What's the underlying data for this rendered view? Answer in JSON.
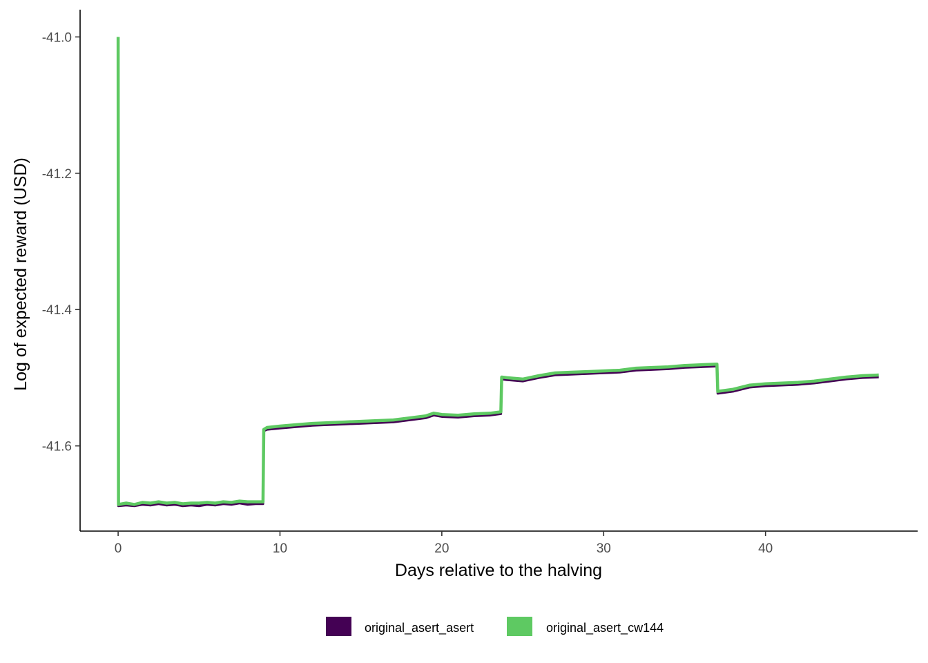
{
  "chart_data": {
    "type": "line",
    "title": "",
    "xlabel": "Days relative to the halving",
    "ylabel": "Log of expected reward (USD)",
    "xlim": [
      -2.35,
      49.4
    ],
    "ylim": [
      -41.725,
      -40.96
    ],
    "x_ticks": [
      0,
      10,
      20,
      30,
      40
    ],
    "x_tick_labels": [
      "0",
      "10",
      "20",
      "30",
      "40"
    ],
    "y_ticks": [
      -41.6,
      -41.4,
      -41.2,
      -41.0
    ],
    "y_tick_labels": [
      "-41.6",
      "-41.4",
      "-41.2",
      "-41.0"
    ],
    "grid": false,
    "legend_position": "bottom",
    "series": [
      {
        "name": "original_asert_asert",
        "color": "#440154",
        "x": [
          0,
          0.02,
          0.5,
          1,
          1.5,
          2,
          2.5,
          3,
          3.5,
          4,
          4.5,
          5,
          5.5,
          6,
          6.5,
          7,
          7.5,
          8,
          8.5,
          8.95,
          9.0,
          9.2,
          10,
          11,
          12,
          13,
          14,
          15,
          16,
          17,
          18,
          19,
          19.5,
          20,
          21,
          22,
          23,
          23.65,
          23.7,
          24,
          25,
          26,
          27,
          28,
          29,
          30,
          31,
          32,
          33,
          34,
          35,
          36,
          37.0,
          37.05,
          38,
          39,
          40,
          41,
          42,
          43,
          44,
          45,
          46,
          47
        ],
        "y": [
          -41.0,
          -41.688,
          -41.687,
          -41.688,
          -41.686,
          -41.687,
          -41.685,
          -41.687,
          -41.686,
          -41.688,
          -41.687,
          -41.688,
          -41.686,
          -41.687,
          -41.685,
          -41.686,
          -41.684,
          -41.686,
          -41.685,
          -41.685,
          -41.578,
          -41.576,
          -41.574,
          -41.572,
          -41.57,
          -41.569,
          -41.568,
          -41.567,
          -41.566,
          -41.565,
          -41.562,
          -41.559,
          -41.555,
          -41.557,
          -41.558,
          -41.556,
          -41.555,
          -41.553,
          -41.502,
          -41.503,
          -41.505,
          -41.5,
          -41.496,
          -41.495,
          -41.494,
          -41.493,
          -41.492,
          -41.489,
          -41.488,
          -41.487,
          -41.485,
          -41.484,
          -41.483,
          -41.523,
          -41.52,
          -41.514,
          -41.512,
          -41.511,
          -41.51,
          -41.508,
          -41.505,
          -41.502,
          -41.5,
          -41.499
        ]
      },
      {
        "name": "original_asert_cw144",
        "color": "#5ec962",
        "x": [
          0,
          0.02,
          0.5,
          1,
          1.5,
          2,
          2.5,
          3,
          3.5,
          4,
          4.5,
          5,
          5.5,
          6,
          6.5,
          7,
          7.5,
          8,
          8.5,
          8.95,
          9.0,
          9.2,
          10,
          11,
          12,
          13,
          14,
          15,
          16,
          17,
          18,
          19,
          19.5,
          20,
          21,
          22,
          23,
          23.65,
          23.7,
          24,
          25,
          26,
          27,
          28,
          29,
          30,
          31,
          32,
          33,
          34,
          35,
          36,
          37.0,
          37.05,
          38,
          39,
          40,
          41,
          42,
          43,
          44,
          45,
          46,
          47
        ],
        "y": [
          -41.0,
          -41.686,
          -41.684,
          -41.686,
          -41.683,
          -41.684,
          -41.682,
          -41.684,
          -41.683,
          -41.685,
          -41.684,
          -41.684,
          -41.683,
          -41.684,
          -41.682,
          -41.683,
          -41.681,
          -41.682,
          -41.682,
          -41.682,
          -41.576,
          -41.573,
          -41.571,
          -41.569,
          -41.567,
          -41.566,
          -41.565,
          -41.564,
          -41.563,
          -41.562,
          -41.559,
          -41.556,
          -41.552,
          -41.554,
          -41.555,
          -41.553,
          -41.552,
          -41.55,
          -41.499,
          -41.5,
          -41.502,
          -41.497,
          -41.493,
          -41.492,
          -41.491,
          -41.49,
          -41.489,
          -41.486,
          -41.485,
          -41.484,
          -41.482,
          -41.481,
          -41.48,
          -41.52,
          -41.517,
          -41.511,
          -41.509,
          -41.508,
          -41.507,
          -41.505,
          -41.502,
          -41.499,
          -41.497,
          -41.496
        ]
      }
    ]
  }
}
